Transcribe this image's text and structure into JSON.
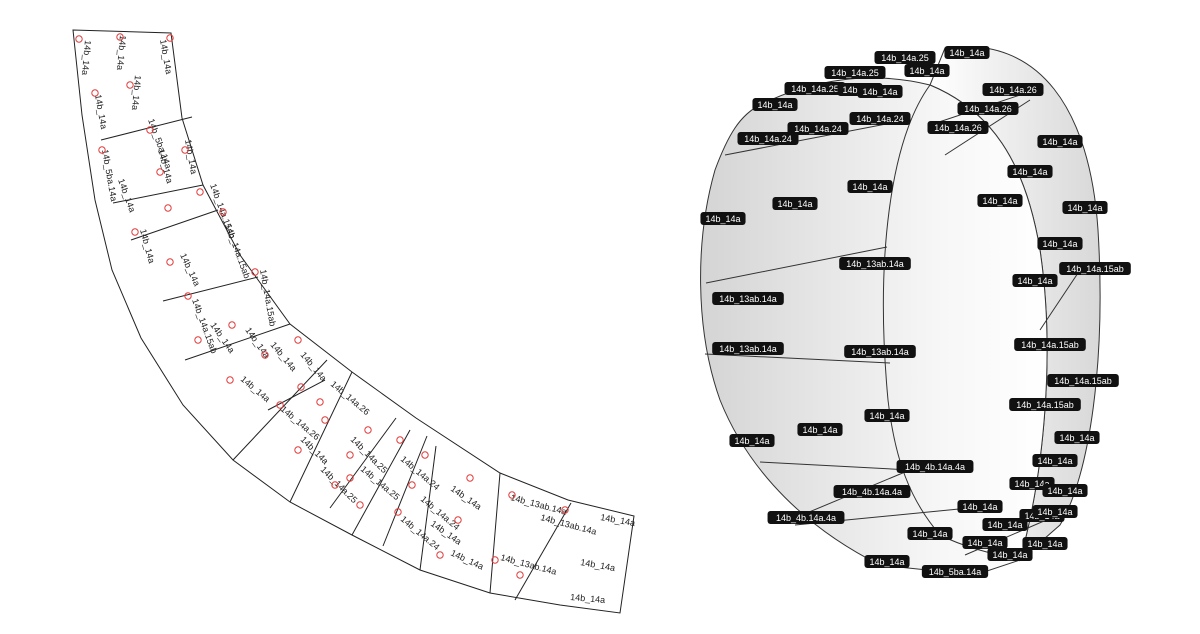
{
  "flat_view": {
    "labels": [
      "14b_14a",
      "14b_14a",
      "14b_14a",
      "14b_14a",
      "14b_14a",
      "14b_5ba.14a",
      "14b_5ba.14a",
      "14b_14a",
      "14b_14a",
      "14b_14a",
      "14b_14a.15ab",
      "14b_14a.15ab",
      "14b_14a.15ab",
      "14b_14a.15ab",
      "14b_14a",
      "14b_14a",
      "14b_14a",
      "14b_14a",
      "14b_14a",
      "14b_14a",
      "14b_14a.26",
      "14b_14a.26",
      "14b_14a",
      "14b_14a",
      "14b_14a.25",
      "14b_14a.25",
      "14b_14a.25",
      "14b_14a.24",
      "14b_14a.24",
      "14b_14a.24",
      "14b_14a",
      "14b_14a",
      "14b_14a",
      "14b_13ab.14a",
      "14b_13ab.14a",
      "14b_13ab.14a",
      "14b_14a",
      "14b_14a",
      "14b_14a"
    ]
  },
  "ring_view": {
    "labels": [
      "14b_14a.25",
      "14b_14a",
      "14b_14a.25",
      "14b_14a",
      "14b_14a.25",
      "14b_14a",
      "14b_14a",
      "14b_14a.26",
      "14b_14a.26",
      "14b_14a.26",
      "14b_14a",
      "14b_14a.24",
      "14b_14a.24",
      "14b_14a.24",
      "14b_14a",
      "14b_14a",
      "14b_14a",
      "14b_14a",
      "14b_14a",
      "14b_14a",
      "14b_14a",
      "14b_14a",
      "14b_14a",
      "14b_14a.15ab",
      "14b_13ab.14a",
      "14b_13ab.14a",
      "14b_13ab.14a",
      "14b_13ab.14a",
      "14b_14a",
      "14b_14a.15ab",
      "14b_14a.15ab",
      "14b_14a.15ab",
      "14b_14a",
      "14b_14a",
      "14b_14a",
      "14b_14a",
      "14b_4b.14a.4a",
      "14b_14a",
      "14b_4b.14a.4a",
      "14b_4b.14a.4a",
      "14b_14a",
      "14b_14a",
      "14b_14a",
      "14b_14a",
      "14b_14a",
      "14b_14a",
      "14b_14a",
      "14b_14a",
      "14b_14a",
      "14b_14a",
      "14b_5ba.14a"
    ]
  }
}
